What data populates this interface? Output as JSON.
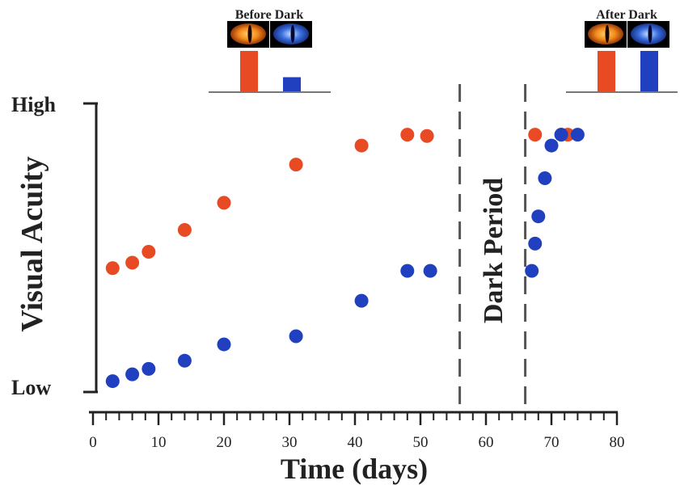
{
  "chart_data": {
    "type": "scatter",
    "title": "",
    "xlabel": "Time (days)",
    "ylabel": "Visual Acuity",
    "xlim": [
      0,
      80
    ],
    "x_ticks": [
      "0",
      "10",
      "20",
      "30",
      "40",
      "50",
      "60",
      "70",
      "80"
    ],
    "ylim": [
      0,
      100
    ],
    "y_tick_labels": {
      "high": "High",
      "low": "Low"
    },
    "grid": false,
    "dark_period": {
      "label": "Dark Period",
      "start": 56,
      "end": 66
    },
    "series": [
      {
        "color": "#e84a24",
        "points": [
          {
            "x": 3,
            "y": 44
          },
          {
            "x": 6,
            "y": 46
          },
          {
            "x": 8.5,
            "y": 50
          },
          {
            "x": 14,
            "y": 58
          },
          {
            "x": 20,
            "y": 68
          },
          {
            "x": 31,
            "y": 82
          },
          {
            "x": 41,
            "y": 89
          },
          {
            "x": 48,
            "y": 93
          },
          {
            "x": 51,
            "y": 92.5
          },
          {
            "x": 67.5,
            "y": 93
          },
          {
            "x": 71.5,
            "y": 93
          },
          {
            "x": 72.5,
            "y": 93
          }
        ]
      },
      {
        "color": "#2040c0",
        "points": [
          {
            "x": 3,
            "y": 2.5
          },
          {
            "x": 6,
            "y": 5
          },
          {
            "x": 8.5,
            "y": 7
          },
          {
            "x": 14,
            "y": 10
          },
          {
            "x": 20,
            "y": 16
          },
          {
            "x": 31,
            "y": 19
          },
          {
            "x": 41,
            "y": 32
          },
          {
            "x": 48,
            "y": 43
          },
          {
            "x": 51.5,
            "y": 43
          },
          {
            "x": 67,
            "y": 43
          },
          {
            "x": 67.5,
            "y": 53
          },
          {
            "x": 68,
            "y": 63
          },
          {
            "x": 69,
            "y": 77
          },
          {
            "x": 70,
            "y": 89
          },
          {
            "x": 71.5,
            "y": 93
          },
          {
            "x": 74,
            "y": 93
          }
        ]
      }
    ],
    "insets": [
      {
        "title": "Before Dark",
        "values": [
          100,
          35
        ]
      },
      {
        "title": "After Dark",
        "values": [
          100,
          100
        ]
      }
    ],
    "inset_colors": [
      "#e84a24",
      "#2040c0"
    ]
  }
}
